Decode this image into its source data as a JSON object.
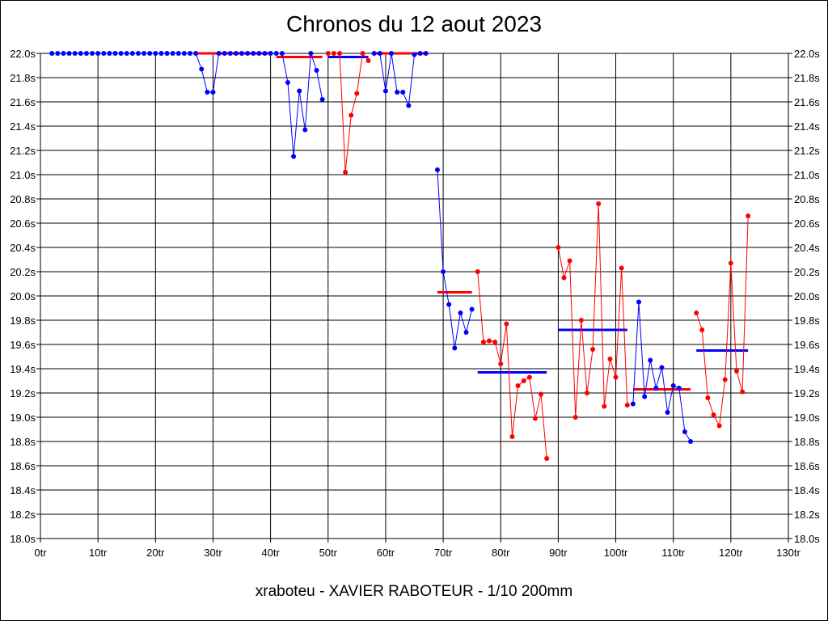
{
  "chart_data": {
    "type": "line",
    "title": "Chronos du 12 aout 2023",
    "subtitle": "xraboteu - XAVIER RABOTEUR - 1/10 200mm",
    "xlabel": "",
    "ylabel": "",
    "xlim": [
      0,
      130
    ],
    "ylim": [
      18.0,
      22.0
    ],
    "grid": true,
    "x_ticks": [
      "0tr",
      "10tr",
      "20tr",
      "30tr",
      "40tr",
      "50tr",
      "60tr",
      "70tr",
      "80tr",
      "90tr",
      "100tr",
      "110tr",
      "120tr",
      "130tr"
    ],
    "y_ticks": [
      "18.0s",
      "18.2s",
      "18.4s",
      "18.6s",
      "18.8s",
      "19.0s",
      "19.2s",
      "19.4s",
      "19.6s",
      "19.8s",
      "20.0s",
      "20.2s",
      "20.4s",
      "20.6s",
      "20.8s",
      "21.0s",
      "21.2s",
      "21.4s",
      "21.6s",
      "21.8s",
      "22.0s"
    ],
    "colors": {
      "blue": "#0000ff",
      "red": "#ff0000",
      "grid": "#000000"
    },
    "series": [
      {
        "color": "blue",
        "x": [
          2,
          3,
          4,
          5,
          6,
          7,
          8,
          9,
          10,
          11,
          12,
          13,
          14,
          15,
          16,
          17,
          18,
          19,
          20,
          21,
          22,
          23,
          24,
          25,
          26,
          27,
          28,
          29,
          30,
          31,
          32,
          33,
          34,
          35,
          36,
          37,
          38,
          39,
          40
        ],
        "y": [
          22.0,
          22.0,
          22.0,
          22.0,
          22.0,
          22.0,
          22.0,
          22.0,
          22.0,
          22.0,
          22.0,
          22.0,
          22.0,
          22.0,
          22.0,
          22.0,
          22.0,
          22.0,
          22.0,
          22.0,
          22.0,
          22.0,
          22.0,
          22.0,
          22.0,
          22.0,
          21.87,
          21.68,
          21.68,
          22.0,
          22.0,
          22.0,
          22.0,
          22.0,
          22.0,
          22.0,
          22.0,
          22.0,
          22.0
        ]
      },
      {
        "color": "blue",
        "x": [
          41,
          42,
          43,
          44,
          45,
          46,
          47,
          48,
          49
        ],
        "y": [
          22.0,
          22.0,
          21.76,
          21.15,
          21.69,
          21.37,
          22.0,
          21.86,
          21.62
        ]
      },
      {
        "color": "red",
        "x": [
          50,
          51,
          52,
          53,
          54,
          55,
          56,
          57
        ],
        "y": [
          22.0,
          22.0,
          22.0,
          21.02,
          21.49,
          21.67,
          22.0,
          21.94
        ]
      },
      {
        "color": "blue",
        "x": [
          58,
          59,
          60,
          61,
          62,
          63,
          64,
          65,
          66,
          67
        ],
        "y": [
          22.0,
          22.0,
          21.69,
          22.0,
          21.68,
          21.68,
          21.57,
          21.99,
          22.0,
          22.0
        ]
      },
      {
        "color": "blue",
        "x": [
          69,
          70,
          71,
          72,
          73,
          74,
          75
        ],
        "y": [
          21.04,
          20.2,
          19.93,
          19.57,
          19.86,
          19.7,
          19.89
        ]
      },
      {
        "color": "red",
        "x": [
          76,
          77,
          78,
          79,
          80,
          81,
          82,
          83,
          84,
          85,
          86,
          87,
          88
        ],
        "y": [
          20.2,
          19.62,
          19.63,
          19.62,
          19.44,
          19.77,
          18.84,
          19.26,
          19.3,
          19.33,
          18.99,
          19.19,
          18.66
        ]
      },
      {
        "color": "red",
        "x": [
          90,
          91,
          92,
          93,
          94,
          95,
          96,
          97,
          98,
          99,
          100,
          101,
          102
        ],
        "y": [
          20.4,
          20.15,
          20.29,
          19.0,
          19.8,
          19.2,
          19.56,
          20.76,
          19.09,
          19.48,
          19.33,
          20.23,
          19.1
        ]
      },
      {
        "color": "blue",
        "x": [
          103,
          104,
          105,
          106,
          107,
          108,
          109,
          110,
          111,
          112,
          113
        ],
        "y": [
          19.11,
          19.95,
          19.17,
          19.47,
          19.24,
          19.41,
          19.04,
          19.26,
          19.24,
          18.88,
          18.8
        ]
      },
      {
        "color": "red",
        "x": [
          114,
          115,
          116,
          117,
          118,
          119,
          120,
          121,
          122,
          123
        ],
        "y": [
          19.86,
          19.72,
          19.16,
          19.02,
          18.93,
          19.31,
          20.27,
          19.38,
          19.21,
          20.66
        ]
      }
    ],
    "average_lines": [
      {
        "color": "red",
        "x": [
          27,
          40
        ],
        "y": 22.0
      },
      {
        "color": "red",
        "x": [
          41,
          49
        ],
        "y": 21.97
      },
      {
        "color": "blue",
        "x": [
          50,
          57
        ],
        "y": 21.97
      },
      {
        "color": "red",
        "x": [
          58,
          67
        ],
        "y": 22.0
      },
      {
        "color": "red",
        "x": [
          69,
          75
        ],
        "y": 20.03
      },
      {
        "color": "blue",
        "x": [
          76,
          88
        ],
        "y": 19.37
      },
      {
        "color": "blue",
        "x": [
          90,
          102
        ],
        "y": 19.72
      },
      {
        "color": "red",
        "x": [
          103,
          113
        ],
        "y": 19.23
      },
      {
        "color": "blue",
        "x": [
          114,
          123
        ],
        "y": 19.55
      }
    ]
  }
}
